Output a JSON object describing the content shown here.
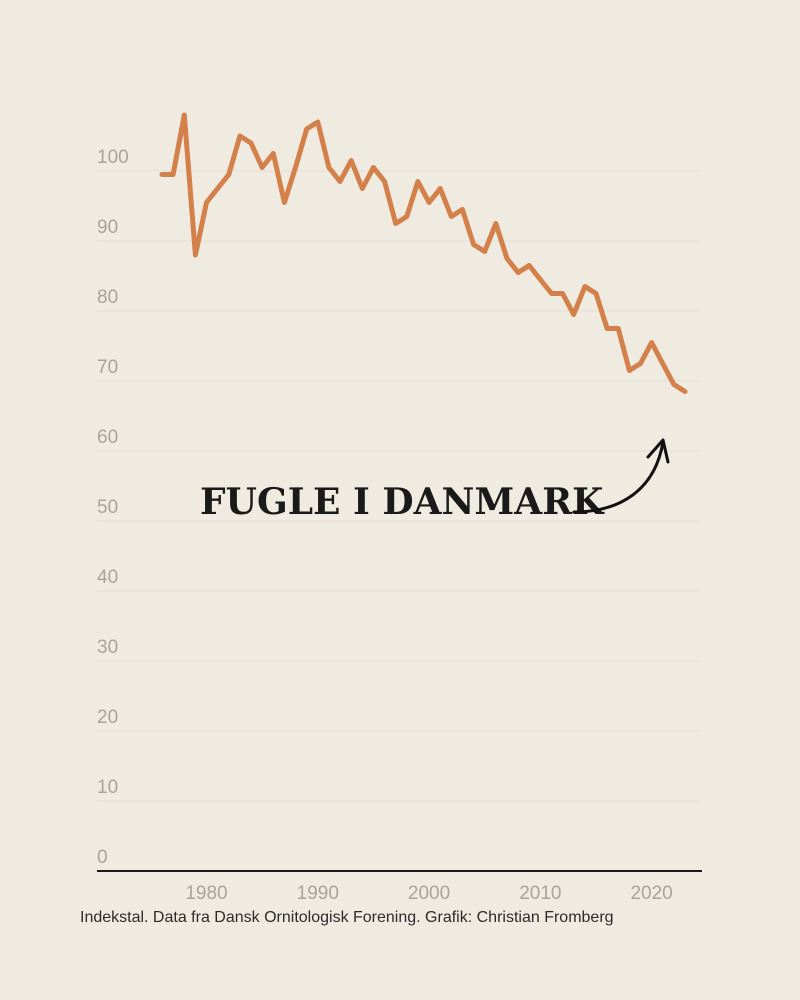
{
  "chart_data": {
    "type": "line",
    "title": "FUGLE I DANMARK",
    "caption": "Indekstal. Data fra Dansk Ornitologisk Forening. Grafik: Christian Fromberg",
    "ylim": [
      0,
      100
    ],
    "yticks": [
      0,
      10,
      20,
      30,
      40,
      50,
      60,
      70,
      80,
      90,
      100
    ],
    "xticks": [
      1980,
      1990,
      2000,
      2010,
      2020
    ],
    "grid": true,
    "line_color": "#d4804a",
    "x": [
      1976,
      1977,
      1978,
      1979,
      1980,
      1981,
      1982,
      1983,
      1984,
      1985,
      1986,
      1987,
      1988,
      1989,
      1990,
      1991,
      1992,
      1993,
      1994,
      1995,
      1996,
      1997,
      1998,
      1999,
      2000,
      2001,
      2002,
      2003,
      2004,
      2005,
      2006,
      2007,
      2008,
      2009,
      2010,
      2011,
      2012,
      2013,
      2014,
      2015,
      2016,
      2017,
      2018,
      2019,
      2020,
      2021,
      2022,
      2023
    ],
    "y": [
      99.5,
      99.5,
      108,
      88,
      95.5,
      97.5,
      99.5,
      105,
      104,
      100.5,
      102.5,
      95.5,
      100.5,
      106,
      107,
      100.5,
      98.5,
      101.5,
      97.5,
      100.5,
      98.5,
      92.5,
      93.5,
      98.5,
      95.5,
      97.5,
      93.5,
      94.5,
      89.5,
      88.5,
      92.5,
      87.5,
      85.5,
      86.5,
      84.5,
      82.5,
      82.5,
      79.5,
      83.5,
      82.5,
      77.5,
      77.5,
      71.5,
      72.5,
      75.5,
      72.5,
      69.5,
      68.5
    ]
  }
}
